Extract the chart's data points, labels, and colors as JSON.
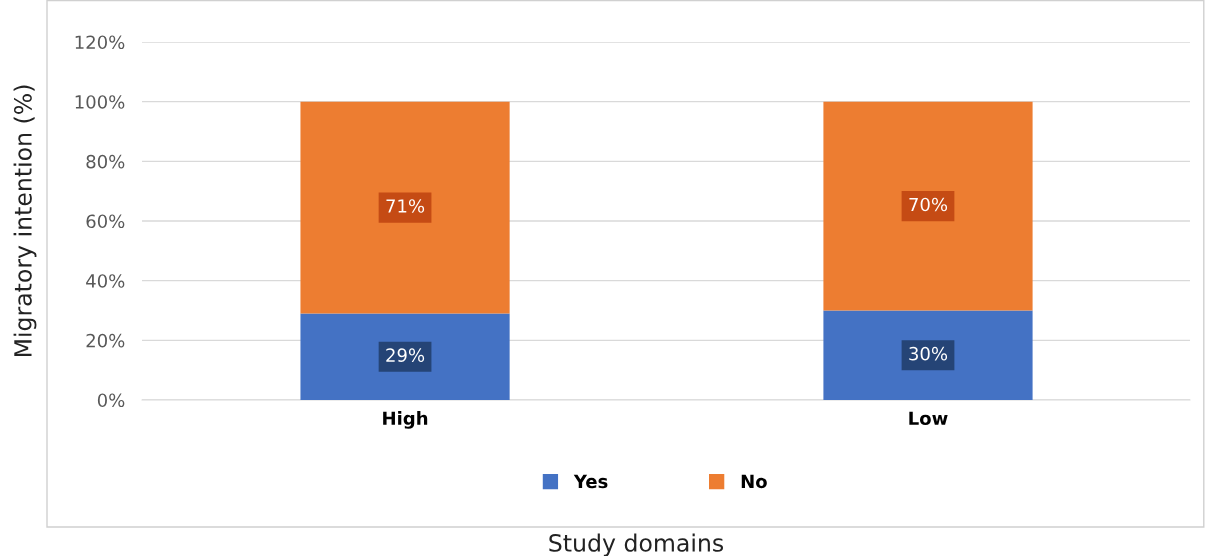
{
  "chart_data": {
    "type": "bar",
    "stacked": true,
    "xlabel": "Study domains",
    "ylabel": "Migratory intention (%)",
    "categories": [
      "High",
      "Low"
    ],
    "series": [
      {
        "name": "Yes",
        "color": "#4472c4",
        "values": [
          29,
          30
        ],
        "value_labels": [
          "29%",
          "30%"
        ]
      },
      {
        "name": "No",
        "color": "#ed7d31",
        "values": [
          71,
          70
        ],
        "value_labels": [
          "71%",
          "70%"
        ]
      }
    ],
    "ylim": [
      0,
      120
    ],
    "yticks": [
      {
        "value": 0,
        "label": "0%"
      },
      {
        "value": 20,
        "label": "20%"
      },
      {
        "value": 40,
        "label": "40%"
      },
      {
        "value": 60,
        "label": "60%"
      },
      {
        "value": 80,
        "label": "80%"
      },
      {
        "value": 100,
        "label": "100%"
      },
      {
        "value": 120,
        "label": "120%"
      }
    ],
    "grid": "y",
    "legend": "bottom"
  }
}
